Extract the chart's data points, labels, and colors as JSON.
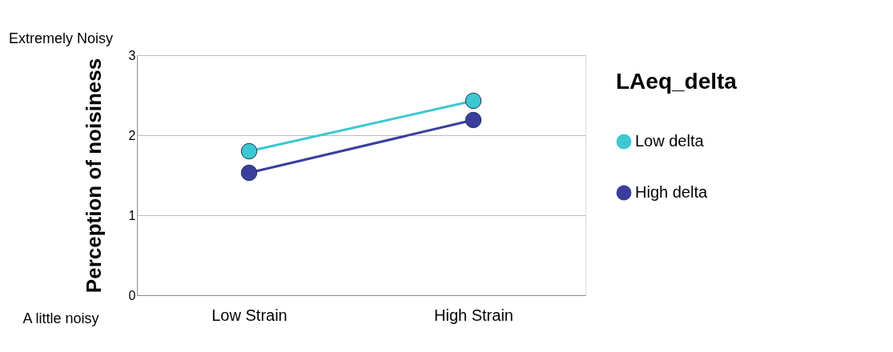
{
  "chart_data": {
    "type": "line",
    "ylabel": "Perception of noisiness",
    "legend_title": "LAeq_delta",
    "categories": [
      "Low Strain",
      "High Strain"
    ],
    "series": [
      {
        "name": "Low delta",
        "color": "#3cc8d0",
        "values": [
          1.8,
          2.43
        ]
      },
      {
        "name": "High delta",
        "color": "#3a3f9e",
        "values": [
          1.53,
          2.19
        ]
      }
    ],
    "ylim": [
      0,
      3
    ],
    "yticks": [
      0,
      1,
      2,
      3
    ],
    "grid": "y",
    "legend": "right",
    "marker": "circle",
    "annotations": [
      "Extremely Noisy",
      "A little noisy"
    ]
  }
}
